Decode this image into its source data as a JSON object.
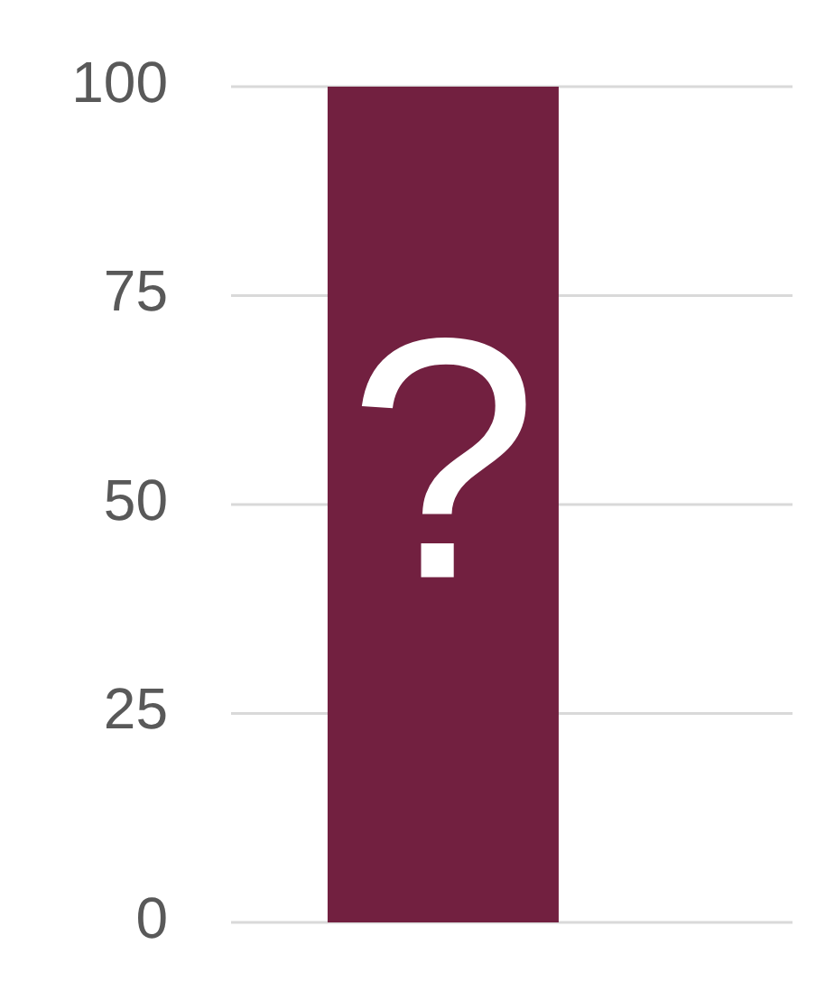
{
  "chart_data": {
    "type": "bar",
    "categories": [
      null
    ],
    "values": [
      100
    ],
    "color": "#722040",
    "ylim": [
      0,
      100
    ],
    "yticks": [
      0,
      25,
      50,
      75,
      100
    ],
    "grid": "y",
    "annotations": [
      "?"
    ]
  }
}
